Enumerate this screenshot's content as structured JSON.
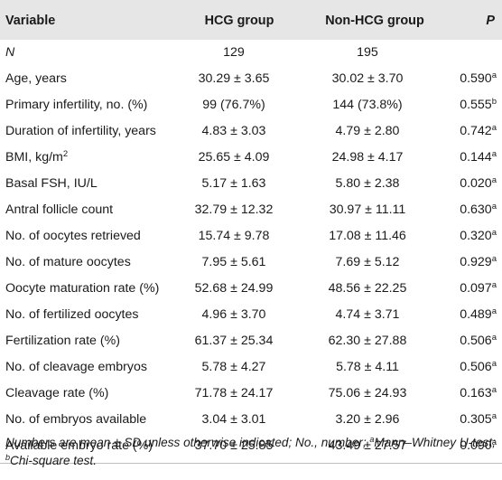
{
  "table": {
    "headers": [
      "Variable",
      "HCG group",
      "Non-HCG group",
      "P"
    ],
    "rows": [
      {
        "label": "N",
        "hcg": "129",
        "non_hcg": "195",
        "p": "",
        "p_sup": ""
      },
      {
        "label": "Age, years",
        "hcg": "30.29 ± 3.65",
        "non_hcg": "30.02 ± 3.70",
        "p": "0.590",
        "p_sup": "a"
      },
      {
        "label": "Primary infertility, no. (%)",
        "hcg": "99 (76.7%)",
        "non_hcg": "144 (73.8%)",
        "p": "0.555",
        "p_sup": "b"
      },
      {
        "label": "Duration of infertility, years",
        "hcg": "4.83 ± 3.03",
        "non_hcg": "4.79 ± 2.80",
        "p": "0.742",
        "p_sup": "a"
      },
      {
        "label": "BMI, kg/m",
        "label_sup": "2",
        "hcg": "25.65 ± 4.09",
        "non_hcg": "24.98 ± 4.17",
        "p": "0.144",
        "p_sup": "a"
      },
      {
        "label": "Basal FSH, IU/L",
        "hcg": "5.17 ± 1.63",
        "non_hcg": "5.80 ± 2.38",
        "p": "0.020",
        "p_sup": "a"
      },
      {
        "label": "Antral follicle count",
        "hcg": "32.79 ± 12.32",
        "non_hcg": "30.97 ± 11.11",
        "p": "0.630",
        "p_sup": "a"
      },
      {
        "label": "No. of oocytes retrieved",
        "hcg": "15.74 ± 9.78",
        "non_hcg": "17.08 ± 11.46",
        "p": "0.320",
        "p_sup": "a"
      },
      {
        "label": "No. of mature oocytes",
        "hcg": "7.95 ± 5.61",
        "non_hcg": "7.69 ± 5.12",
        "p": "0.929",
        "p_sup": "a"
      },
      {
        "label": "Oocyte maturation rate (%)",
        "hcg": "52.68 ± 24.99",
        "non_hcg": "48.56 ± 22.25",
        "p": "0.097",
        "p_sup": "a"
      },
      {
        "label": "No. of fertilized oocytes",
        "hcg": "4.96 ± 3.70",
        "non_hcg": "4.74 ± 3.71",
        "p": "0.489",
        "p_sup": "a"
      },
      {
        "label": "Fertilization rate (%)",
        "hcg": "61.37 ± 25.34",
        "non_hcg": "62.30 ± 27.88",
        "p": "0.506",
        "p_sup": "a"
      },
      {
        "label": "No. of cleavage embryos",
        "hcg": "5.78 ± 4.27",
        "non_hcg": "5.78 ± 4.11",
        "p": "0.506",
        "p_sup": "a"
      },
      {
        "label": "Cleavage rate (%)",
        "hcg": "71.78 ± 24.17",
        "non_hcg": "75.06 ± 24.93",
        "p": "0.163",
        "p_sup": "a"
      },
      {
        "label": "No. of embryos available",
        "hcg": "3.04 ± 3.01",
        "non_hcg": "3.20 ± 2.96",
        "p": "0.305",
        "p_sup": "a"
      },
      {
        "label": "Available embryo rate (%)",
        "hcg": "37.70 ± 25.85",
        "non_hcg": "43.49 ± 27.57",
        "p": "0.090",
        "p_sup": "a"
      }
    ]
  },
  "footnote": {
    "part1": "Numbers are mean ± SD unless otherwise indicated; No., number; ",
    "sup_a": "a",
    "part2": "Mann–Whitney U-test; ",
    "sup_b": "b",
    "part3": "Chi-square test."
  },
  "colors": {
    "header_bg": "#e6e6e6",
    "rule": "#bfbfbf",
    "text": "#1a1a1a"
  }
}
